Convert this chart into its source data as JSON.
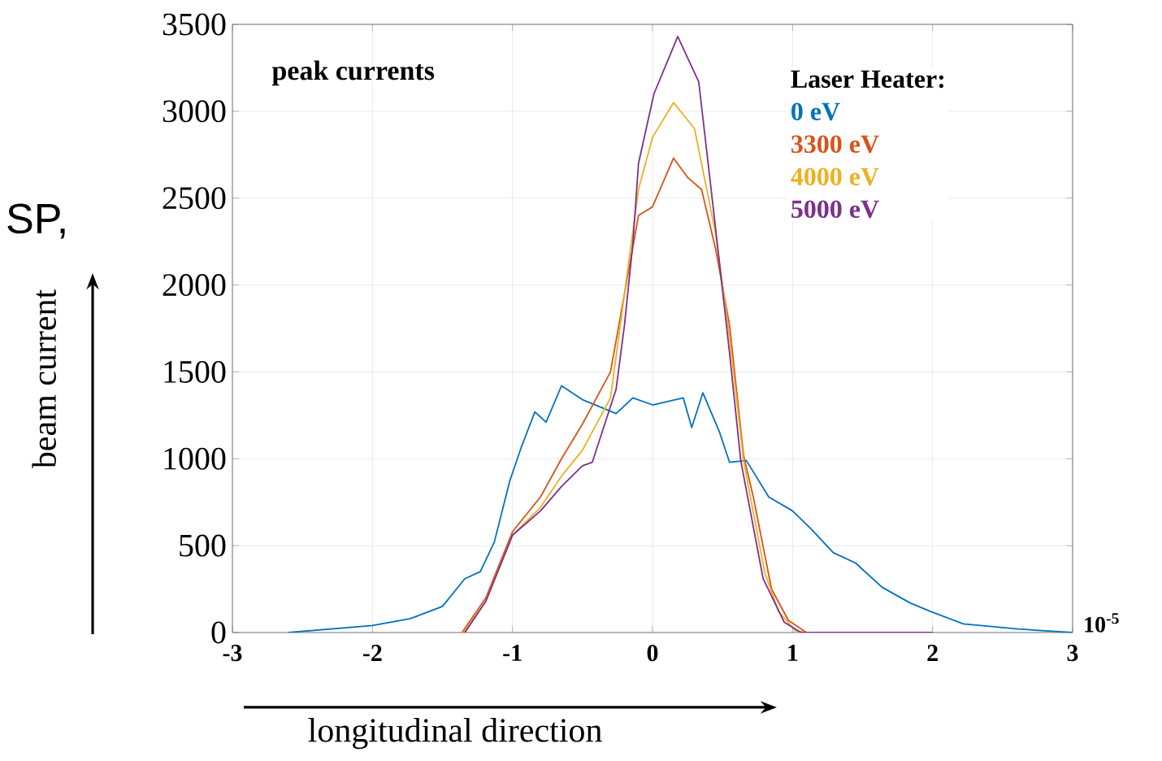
{
  "chart_data": {
    "type": "line",
    "title": "peak currents",
    "xlabel": "longitudinal direction",
    "ylabel": "beam current",
    "legend_title": "Laser Heater:",
    "xlim": [
      -3,
      3
    ],
    "ylim": [
      0,
      3500
    ],
    "xticks": [
      -3,
      -2,
      -1,
      0,
      1,
      2,
      3
    ],
    "yticks": [
      0,
      500,
      1000,
      1500,
      2000,
      2500,
      3000,
      3500
    ],
    "grid": true,
    "legend": "top right",
    "annotations": [
      "10$^{-5}$",
      "SP,"
    ],
    "series": [
      {
        "name": "0 eV",
        "color": "#0072bd",
        "x": [
          -2.6,
          -2.0,
          -1.73,
          -1.5,
          -1.34,
          -1.23,
          -1.13,
          -1.02,
          -0.94,
          -0.84,
          -0.76,
          -0.65,
          -0.5,
          -0.26,
          -0.14,
          0,
          0.22,
          0.28,
          0.36,
          0.48,
          0.55,
          0.67,
          0.83,
          1.0,
          1.14,
          1.29,
          1.45,
          1.64,
          1.84,
          1.99,
          2.22,
          2.61,
          3.0
        ],
        "values": [
          0,
          40,
          80,
          150,
          310,
          350,
          520,
          870,
          1060,
          1270,
          1210,
          1420,
          1340,
          1260,
          1350,
          1310,
          1350,
          1180,
          1380,
          1150,
          980,
          990,
          780,
          700,
          590,
          460,
          400,
          260,
          170,
          120,
          50,
          20,
          0
        ]
      },
      {
        "name": "3300 eV",
        "color": "#d95319",
        "x": [
          -1.36,
          -1.19,
          -1.0,
          -0.8,
          -0.65,
          -0.5,
          -0.3,
          -0.1,
          0,
          0.15,
          0.25,
          0.35,
          0.45,
          0.55,
          0.65,
          0.72,
          0.85,
          0.97,
          1.1,
          2.0
        ],
        "values": [
          0,
          200,
          580,
          780,
          1000,
          1200,
          1500,
          2400,
          2450,
          2730,
          2620,
          2550,
          2210,
          1770,
          1020,
          780,
          250,
          70,
          0,
          0
        ]
      },
      {
        "name": "4000 eV",
        "color": "#edb120",
        "x": [
          -1.35,
          -1.19,
          -1.0,
          -0.8,
          -0.65,
          -0.5,
          -0.3,
          -0.1,
          0,
          0.15,
          0.3,
          0.45,
          0.55,
          0.65,
          0.8,
          0.9,
          1.02,
          1.1,
          2.0
        ],
        "values": [
          0,
          180,
          560,
          720,
          900,
          1050,
          1350,
          2550,
          2850,
          3050,
          2900,
          2300,
          1700,
          990,
          350,
          120,
          10,
          0,
          0
        ]
      },
      {
        "name": "5000 eV",
        "color": "#7e2f8e",
        "x": [
          -1.34,
          -1.19,
          -1.0,
          -0.8,
          -0.65,
          -0.5,
          -0.43,
          -0.26,
          -0.2,
          -0.14,
          -0.1,
          0.01,
          0.18,
          0.33,
          0.44,
          0.55,
          0.63,
          0.79,
          0.94,
          1.06,
          2.0
        ],
        "values": [
          0,
          180,
          560,
          700,
          840,
          960,
          980,
          1400,
          1770,
          2240,
          2700,
          3100,
          3430,
          3170,
          2400,
          1610,
          990,
          310,
          60,
          0,
          0
        ]
      }
    ]
  }
}
